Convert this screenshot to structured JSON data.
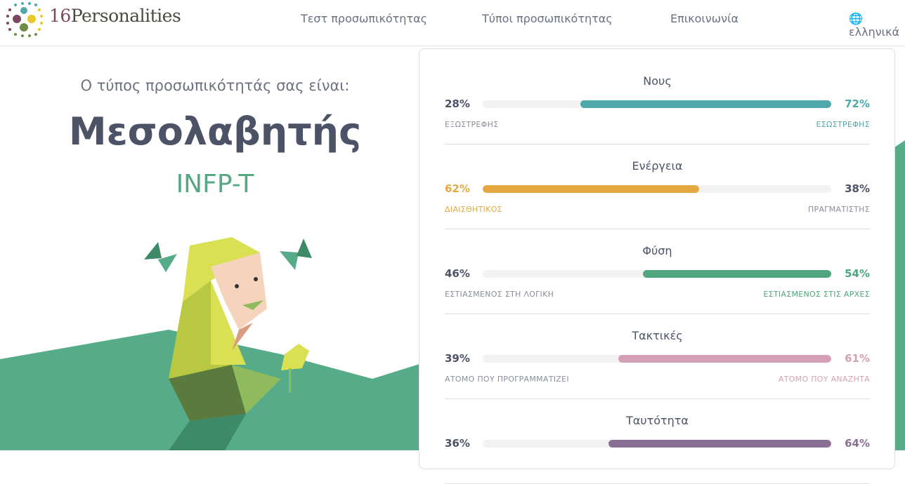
{
  "header": {
    "logo_text_num": "16",
    "logo_text": "Personalities",
    "nav": [
      "Τεστ προσωπικότητας",
      "Τύποι προσωπικότητας",
      "Επικοινωνία"
    ],
    "language": "ελληνικά"
  },
  "result": {
    "intro": "Ο τύπος προσωπικότητάς σας είναι:",
    "type_name": "Μεσολαβητής",
    "type_code": "INFP-T"
  },
  "traits": [
    {
      "title": "Νους",
      "left_pct": "28%",
      "right_pct": "72%",
      "left_label": "ΕΞΩΣΤΡΕΦΗΣ",
      "right_label": "ΕΣΩΣΤΡΕΦΗΣ",
      "dominant": "right",
      "value": 72,
      "color": "#4fa8aa"
    },
    {
      "title": "Ενέργεια",
      "left_pct": "62%",
      "right_pct": "38%",
      "left_label": "ΔΙΑΙΣΘΗΤΙΚΟΣ",
      "right_label": "ΠΡΑΓΜΑΤΙΣΤΗΣ",
      "dominant": "left",
      "value": 62,
      "color": "#e3a83f"
    },
    {
      "title": "Φύση",
      "left_pct": "46%",
      "right_pct": "54%",
      "left_label": "ΕΣΤΙΑΣΜΕΝΟΣ ΣΤΗ ΛΟΓΙΚΗ",
      "right_label": "ΕΣΤΙΑΣΜΕΝΟΣ ΣΤΙΣ ΑΡΧΕΣ",
      "dominant": "right",
      "value": 54,
      "color": "#4fa67e"
    },
    {
      "title": "Τακτικές",
      "left_pct": "39%",
      "right_pct": "61%",
      "left_label": "ΑΤΟΜΟ ΠΟΥ ΠΡΟΓΡΑΜΜΑΤΙΖΕΙ",
      "right_label": "ΑΤΟΜΟ ΠΟΥ ΑΝΑΖΗΤΑ",
      "dominant": "right",
      "value": 61,
      "color": "#d4a0b6"
    },
    {
      "title": "Ταυτότητα",
      "left_pct": "36%",
      "right_pct": "64%",
      "left_label": "",
      "right_label": "",
      "dominant": "right",
      "value": 64,
      "color": "#8a6f95"
    }
  ]
}
